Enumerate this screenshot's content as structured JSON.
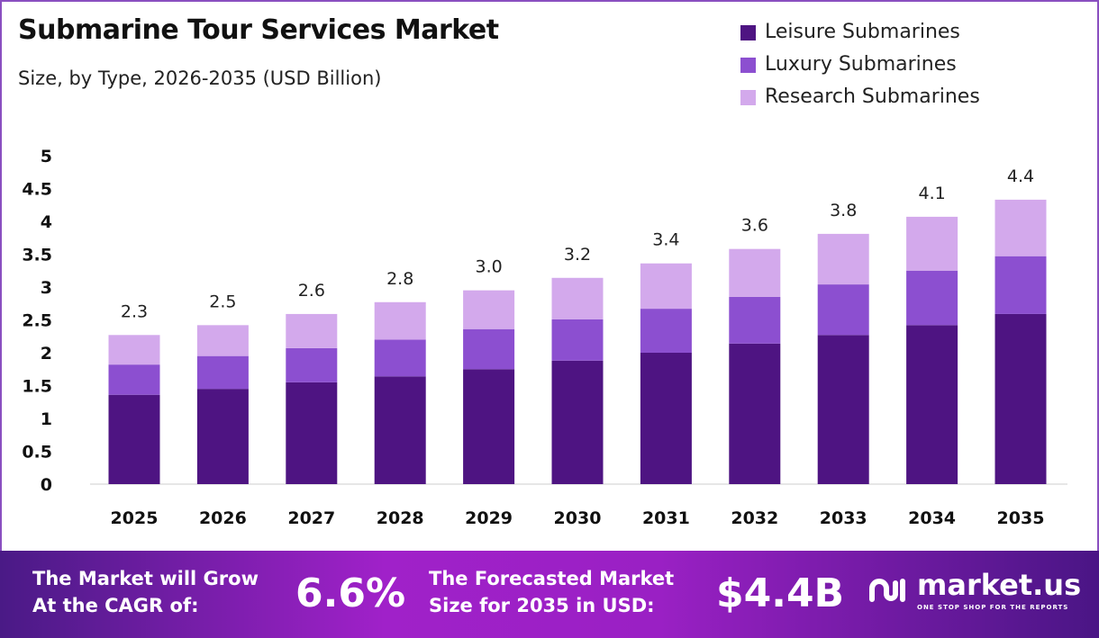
{
  "chart_data": {
    "type": "bar",
    "stacked": true,
    "title": "Submarine Tour Services Market",
    "subtitle": "Size, by Type, 2026-2035 (USD Billion)",
    "categories": [
      "2025",
      "2026",
      "2027",
      "2028",
      "2029",
      "2030",
      "2031",
      "2032",
      "2033",
      "2034",
      "2035"
    ],
    "series": [
      {
        "name": "Leisure Submarines",
        "color": "#4e1482",
        "values": [
          1.36,
          1.45,
          1.55,
          1.64,
          1.75,
          1.88,
          2.0,
          2.14,
          2.27,
          2.42,
          2.59
        ]
      },
      {
        "name": "Luxury Submarines",
        "color": "#8c4fd0",
        "values": [
          0.46,
          0.5,
          0.52,
          0.56,
          0.61,
          0.63,
          0.67,
          0.71,
          0.77,
          0.83,
          0.88
        ]
      },
      {
        "name": "Research Submarines",
        "color": "#d3a9ec",
        "values": [
          0.45,
          0.47,
          0.52,
          0.57,
          0.59,
          0.63,
          0.69,
          0.73,
          0.77,
          0.82,
          0.86
        ]
      }
    ],
    "totals": [
      "2.3",
      "2.5",
      "2.6",
      "2.8",
      "3.0",
      "3.2",
      "3.4",
      "3.6",
      "3.8",
      "4.1",
      "4.4"
    ],
    "yticks": [
      "0",
      "0.5",
      "1",
      "1.5",
      "2",
      "2.5",
      "3",
      "3.5",
      "4",
      "4.5",
      "5"
    ],
    "ylim": [
      0,
      5
    ],
    "legend": "top-right",
    "grid": false
  },
  "footer": {
    "cagr_text_1": "The Market will Grow",
    "cagr_text_2": "At the CAGR of:",
    "cagr": "6.6%",
    "forecast_text_1": "The Forecasted Market",
    "forecast_text_2": "Size for 2035 in USD:",
    "forecast": "$4.4B",
    "brand": "market.us",
    "tagline": "ONE STOP SHOP FOR THE REPORTS"
  }
}
